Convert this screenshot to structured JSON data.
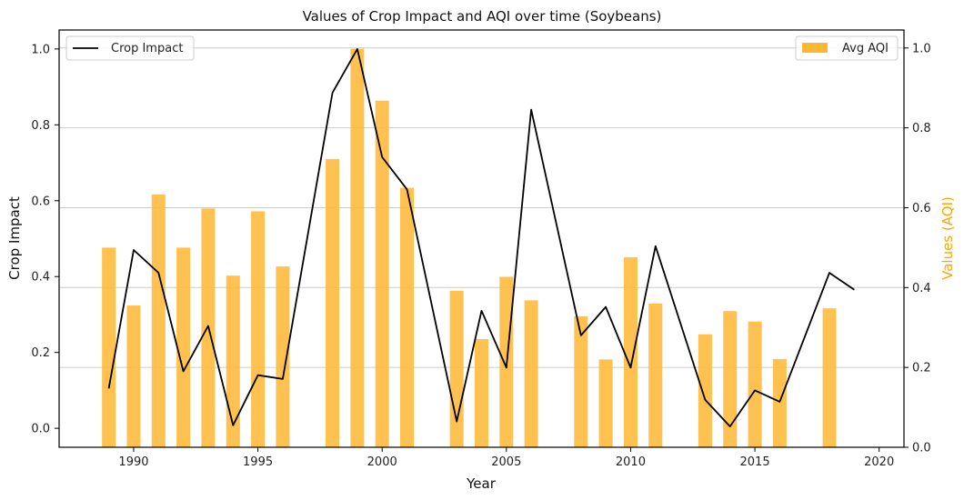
{
  "chart_data": {
    "type": "bar+line",
    "title": "Values of Crop Impact and AQI over time (Soybeans)",
    "xlabel": "Year",
    "ylabel_left": "Crop Impact",
    "ylabel_right": "Values (AQI)",
    "xlim": [
      1987,
      2021
    ],
    "ylim_left": [
      -0.05,
      1.05
    ],
    "ylim_right": [
      0,
      1.045
    ],
    "x_ticks": [
      1990,
      1995,
      2000,
      2005,
      2010,
      2015,
      2020
    ],
    "y_ticks_left": [
      0.0,
      0.2,
      0.4,
      0.6,
      0.8,
      1.0
    ],
    "y_ticks_right": [
      0.0,
      0.2,
      0.4,
      0.6,
      0.8,
      1.0
    ],
    "grid": "horizontal",
    "line_series": {
      "name": "Crop Impact",
      "color": "#000000",
      "x": [
        1989,
        1990,
        1991,
        1992,
        1993,
        1994,
        1995,
        1996,
        1998,
        1999,
        2000,
        2001,
        2003,
        2004,
        2005,
        2006,
        2008,
        2009,
        2010,
        2011,
        2013,
        2014,
        2015,
        2016,
        2018,
        2019
      ],
      "y": [
        0.105,
        0.47,
        0.41,
        0.15,
        0.27,
        0.008,
        0.14,
        0.13,
        0.885,
        1.0,
        0.715,
        0.63,
        0.018,
        0.31,
        0.16,
        0.84,
        0.245,
        0.32,
        0.16,
        0.48,
        0.075,
        0.005,
        0.1,
        0.07,
        0.41,
        0.365
      ]
    },
    "bar_series": {
      "name": "Avg AQI",
      "color": "#FFB732",
      "x": [
        1989,
        1990,
        1991,
        1992,
        1993,
        1994,
        1995,
        1996,
        1998,
        1999,
        2000,
        2001,
        2003,
        2004,
        2005,
        2006,
        2008,
        2009,
        2010,
        2011,
        2013,
        2014,
        2015,
        2016,
        2018
      ],
      "values": [
        0.5,
        0.355,
        0.633,
        0.5,
        0.598,
        0.43,
        0.591,
        0.453,
        0.722,
        0.998,
        0.868,
        0.65,
        0.392,
        0.271,
        0.427,
        0.368,
        0.328,
        0.22,
        0.476,
        0.36,
        0.283,
        0.341,
        0.315,
        0.221,
        0.348
      ]
    },
    "legend_left": "top-left",
    "legend_right": "top-right"
  }
}
